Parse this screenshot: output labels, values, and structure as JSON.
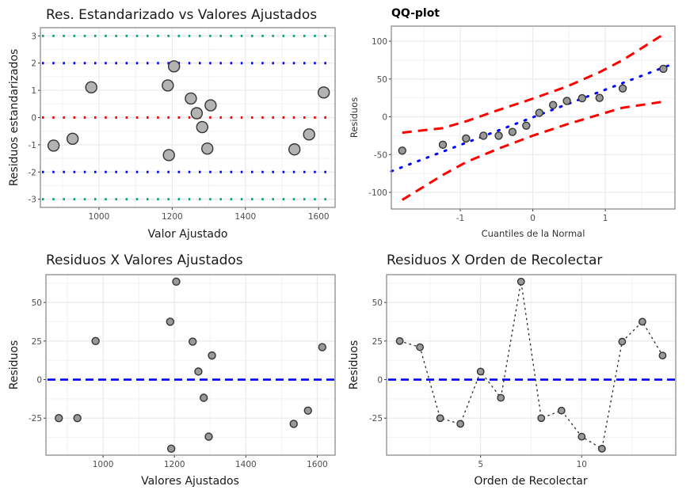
{
  "chart_data": [
    {
      "id": "std_resid",
      "type": "scatter",
      "title": "Res. Estandarizado vs Valores Ajustados",
      "xlabel": "Valor Ajustado",
      "ylabel": "Residuos estandarizados",
      "xlim": [
        840,
        1645
      ],
      "ylim": [
        -3.3,
        3.3
      ],
      "xticks": [
        1000,
        1200,
        1400,
        1600
      ],
      "yticks": [
        -3,
        -2,
        -1,
        0,
        1,
        2,
        3
      ],
      "grid": true,
      "hlines": [
        {
          "y": 3,
          "color": "#00a67e",
          "style": "dotted"
        },
        {
          "y": 2,
          "color": "#0000ff",
          "style": "dotted"
        },
        {
          "y": 0,
          "color": "#ff0000",
          "style": "dotted"
        },
        {
          "y": -2,
          "color": "#0000ff",
          "style": "dotted"
        },
        {
          "y": -3,
          "color": "#00a67e",
          "style": "dotted"
        }
      ],
      "points": [
        {
          "x": 876,
          "y": -1.03
        },
        {
          "x": 928,
          "y": -0.78
        },
        {
          "x": 979,
          "y": 1.11
        },
        {
          "x": 1188,
          "y": 1.18
        },
        {
          "x": 1191,
          "y": -1.38
        },
        {
          "x": 1205,
          "y": 1.88
        },
        {
          "x": 1251,
          "y": 0.7
        },
        {
          "x": 1267,
          "y": 0.16
        },
        {
          "x": 1282,
          "y": -0.35
        },
        {
          "x": 1296,
          "y": -1.14
        },
        {
          "x": 1305,
          "y": 0.45
        },
        {
          "x": 1534,
          "y": -1.17
        },
        {
          "x": 1574,
          "y": -0.62
        },
        {
          "x": 1614,
          "y": 0.92
        }
      ],
      "point_fill": "#b3b3b3",
      "point_stroke": "#333333"
    },
    {
      "id": "qqplot",
      "type": "scatter",
      "title": "QQ-plot",
      "xlabel": "Cuantiles de la Normal",
      "ylabel": "Residuos",
      "xlim": [
        -1.95,
        1.96
      ],
      "ylim": [
        -122,
        120
      ],
      "xticks": [
        -1,
        0,
        1
      ],
      "yticks": [
        -100,
        -50,
        0,
        50,
        100
      ],
      "grid": true,
      "points": [
        {
          "x": -1.8,
          "y": -44.8
        },
        {
          "x": -1.24,
          "y": -37
        },
        {
          "x": -0.92,
          "y": -28.7
        },
        {
          "x": -0.68,
          "y": -25
        },
        {
          "x": -0.47,
          "y": -25
        },
        {
          "x": -0.28,
          "y": -20.1
        },
        {
          "x": -0.09,
          "y": -11.8
        },
        {
          "x": 0.09,
          "y": 5.2
        },
        {
          "x": 0.28,
          "y": 15.6
        },
        {
          "x": 0.47,
          "y": 21
        },
        {
          "x": 0.68,
          "y": 24.6
        },
        {
          "x": 0.92,
          "y": 25
        },
        {
          "x": 1.24,
          "y": 37.5
        },
        {
          "x": 1.8,
          "y": 63.5
        }
      ],
      "reference_line": {
        "intercept": -0.7,
        "slope": 36.6,
        "color": "#0000ff",
        "style": "dotted",
        "x_range": [
          -1.95,
          1.96
        ]
      },
      "confidence_band": {
        "color": "#ff0000",
        "style": "dashed",
        "upper": [
          {
            "x": -1.8,
            "y": -21
          },
          {
            "x": -1.24,
            "y": -15
          },
          {
            "x": -0.92,
            "y": -6
          },
          {
            "x": -0.47,
            "y": 9
          },
          {
            "x": 0,
            "y": 24
          },
          {
            "x": 0.47,
            "y": 40
          },
          {
            "x": 0.92,
            "y": 59
          },
          {
            "x": 1.24,
            "y": 75
          },
          {
            "x": 1.8,
            "y": 109
          }
        ],
        "lower": [
          {
            "x": -1.8,
            "y": -110
          },
          {
            "x": -1.24,
            "y": -77
          },
          {
            "x": -0.92,
            "y": -60
          },
          {
            "x": -0.47,
            "y": -42
          },
          {
            "x": 0,
            "y": -25
          },
          {
            "x": 0.47,
            "y": -10
          },
          {
            "x": 0.92,
            "y": 3
          },
          {
            "x": 1.24,
            "y": 12
          },
          {
            "x": 1.8,
            "y": 20
          }
        ]
      },
      "point_fill": "#999999",
      "point_stroke": "#333333"
    },
    {
      "id": "resid_fitted",
      "type": "scatter",
      "title": "Residuos X Valores Ajustados",
      "xlabel": "Valores Ajustados",
      "ylabel": "Residuos",
      "xlim": [
        840,
        1650
      ],
      "ylim": [
        -49,
        68
      ],
      "xticks": [
        1000,
        1200,
        1400,
        1600
      ],
      "yticks": [
        -25,
        0,
        25,
        50
      ],
      "grid": true,
      "hlines": [
        {
          "y": 0,
          "color": "#0000ff",
          "style": "dashed"
        }
      ],
      "points": [
        {
          "x": 876,
          "y": -25
        },
        {
          "x": 928,
          "y": -25
        },
        {
          "x": 979,
          "y": 25
        },
        {
          "x": 1188,
          "y": 37.5
        },
        {
          "x": 1191,
          "y": -44.8
        },
        {
          "x": 1205,
          "y": 63.5
        },
        {
          "x": 1251,
          "y": 24.6
        },
        {
          "x": 1267,
          "y": 5.2
        },
        {
          "x": 1282,
          "y": -11.8
        },
        {
          "x": 1296,
          "y": -37
        },
        {
          "x": 1305,
          "y": 15.6
        },
        {
          "x": 1534,
          "y": -28.7
        },
        {
          "x": 1574,
          "y": -20.1
        },
        {
          "x": 1614,
          "y": 21
        }
      ],
      "point_fill": "#999999",
      "point_stroke": "#333333"
    },
    {
      "id": "resid_order",
      "type": "line",
      "title": "Residuos X Orden de Recolectar",
      "xlabel": "Orden de Recolectar",
      "ylabel": "Residuos",
      "xlim": [
        0.35,
        14.65
      ],
      "ylim": [
        -49,
        68
      ],
      "xticks": [
        5,
        10
      ],
      "yticks": [
        -25,
        0,
        25,
        50
      ],
      "grid": true,
      "hlines": [
        {
          "y": 0,
          "color": "#0000ff",
          "style": "dashed"
        }
      ],
      "x": [
        1,
        2,
        3,
        4,
        5,
        6,
        7,
        8,
        9,
        10,
        11,
        12,
        13,
        14
      ],
      "values": [
        25,
        21,
        -25,
        -28.7,
        5.2,
        -11.8,
        63.5,
        -25,
        -20.1,
        -37,
        -44.8,
        24.6,
        37.5,
        15.6
      ],
      "line_style": "dotted",
      "line_color": "#333333",
      "point_fill": "#999999",
      "point_stroke": "#333333"
    }
  ]
}
